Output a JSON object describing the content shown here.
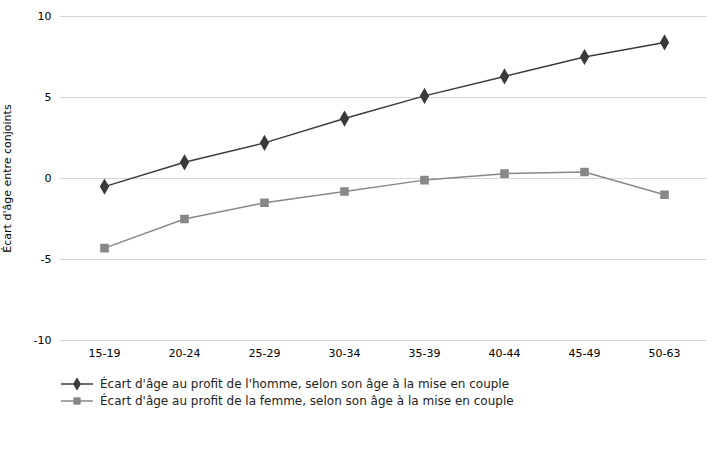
{
  "chart_data": {
    "type": "line",
    "categories": [
      "15-19",
      "20-24",
      "25-29",
      "30-34",
      "35-39",
      "40-44",
      "45-49",
      "50-63"
    ],
    "series": [
      {
        "name": "Écart d'âge au profit de l'homme, selon son âge à la mise en couple",
        "color": "#3a3a3a",
        "marker": "diamond",
        "values": [
          -0.5,
          1.0,
          2.2,
          3.7,
          5.1,
          6.3,
          7.5,
          8.4
        ]
      },
      {
        "name": "Écart d'âge au profit de la femme, selon son âge à la mise en couple",
        "color": "#888888",
        "marker": "square",
        "values": [
          -4.3,
          -2.5,
          -1.5,
          -0.8,
          -0.1,
          0.3,
          0.4,
          -1.0
        ]
      }
    ],
    "ylabel": "Écart d'âge entre conjoints",
    "ylim": [
      -10,
      10
    ],
    "yticks": [
      -10,
      -5,
      0,
      5,
      10
    ],
    "grid": true,
    "legend": "bottom"
  }
}
